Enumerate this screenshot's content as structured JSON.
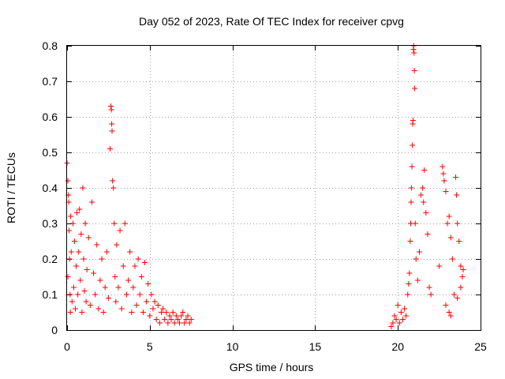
{
  "chart_data": {
    "type": "scatter",
    "title": "Day 052 of 2023, Rate Of TEC Index for receiver cpvg",
    "xlabel": "GPS time / hours",
    "ylabel": "ROTI / TECUs",
    "xlim": [
      0,
      25
    ],
    "ylim": [
      0,
      0.8
    ],
    "x_ticks": [
      0,
      5,
      10,
      15,
      20,
      25
    ],
    "x_tick_labels": [
      "0",
      "5",
      "10",
      "15",
      "20",
      "25"
    ],
    "y_ticks": [
      0,
      0.1,
      0.2,
      0.3,
      0.4,
      0.5,
      0.6,
      0.7,
      0.8
    ],
    "y_tick_labels": [
      "0",
      "0.1",
      "0.2",
      "0.3",
      "0.4",
      "0.5",
      "0.6",
      "0.7",
      "0.8"
    ],
    "grid": true,
    "marker": "plus",
    "color": "#ff0000",
    "series": [
      {
        "name": "ROTI",
        "points": [
          [
            0.0,
            0.47
          ],
          [
            0.05,
            0.42
          ],
          [
            0.05,
            0.15
          ],
          [
            0.08,
            0.38
          ],
          [
            0.1,
            0.36
          ],
          [
            0.12,
            0.28
          ],
          [
            0.15,
            0.2
          ],
          [
            0.18,
            0.1
          ],
          [
            0.2,
            0.05
          ],
          [
            0.22,
            0.32
          ],
          [
            0.25,
            0.22
          ],
          [
            0.3,
            0.08
          ],
          [
            0.35,
            0.3
          ],
          [
            0.4,
            0.12
          ],
          [
            0.45,
            0.25
          ],
          [
            0.5,
            0.06
          ],
          [
            0.55,
            0.18
          ],
          [
            0.6,
            0.33
          ],
          [
            0.65,
            0.1
          ],
          [
            0.7,
            0.22
          ],
          [
            0.75,
            0.34
          ],
          [
            0.8,
            0.14
          ],
          [
            0.85,
            0.27
          ],
          [
            0.9,
            0.05
          ],
          [
            0.95,
            0.4
          ],
          [
            1.0,
            0.2
          ],
          [
            1.05,
            0.11
          ],
          [
            1.1,
            0.3
          ],
          [
            1.15,
            0.08
          ],
          [
            1.2,
            0.17
          ],
          [
            1.3,
            0.26
          ],
          [
            1.4,
            0.07
          ],
          [
            1.5,
            0.36
          ],
          [
            1.6,
            0.16
          ],
          [
            1.7,
            0.1
          ],
          [
            1.8,
            0.24
          ],
          [
            1.9,
            0.06
          ],
          [
            2.0,
            0.14
          ],
          [
            2.1,
            0.2
          ],
          [
            2.2,
            0.05
          ],
          [
            2.3,
            0.12
          ],
          [
            2.4,
            0.22
          ],
          [
            2.5,
            0.09
          ],
          [
            2.6,
            0.51
          ],
          [
            2.65,
            0.63
          ],
          [
            2.68,
            0.62
          ],
          [
            2.7,
            0.58
          ],
          [
            2.72,
            0.56
          ],
          [
            2.75,
            0.42
          ],
          [
            2.8,
            0.4
          ],
          [
            2.85,
            0.3
          ],
          [
            2.9,
            0.15
          ],
          [
            2.95,
            0.08
          ],
          [
            3.0,
            0.24
          ],
          [
            3.1,
            0.12
          ],
          [
            3.2,
            0.28
          ],
          [
            3.3,
            0.06
          ],
          [
            3.4,
            0.18
          ],
          [
            3.5,
            0.3
          ],
          [
            3.6,
            0.1
          ],
          [
            3.7,
            0.14
          ],
          [
            3.8,
            0.22
          ],
          [
            3.9,
            0.05
          ],
          [
            4.0,
            0.12
          ],
          [
            4.1,
            0.18
          ],
          [
            4.2,
            0.07
          ],
          [
            4.3,
            0.2
          ],
          [
            4.4,
            0.1
          ],
          [
            4.5,
            0.15
          ],
          [
            4.6,
            0.05
          ],
          [
            4.7,
            0.19
          ],
          [
            4.8,
            0.08
          ],
          [
            4.9,
            0.13
          ],
          [
            5.0,
            0.04
          ],
          [
            5.1,
            0.1
          ],
          [
            5.2,
            0.06
          ],
          [
            5.3,
            0.08
          ],
          [
            5.4,
            0.03
          ],
          [
            5.5,
            0.07
          ],
          [
            5.6,
            0.02
          ],
          [
            5.7,
            0.05
          ],
          [
            5.8,
            0.06
          ],
          [
            5.9,
            0.03
          ],
          [
            6.0,
            0.05
          ],
          [
            6.1,
            0.02
          ],
          [
            6.2,
            0.04
          ],
          [
            6.3,
            0.03
          ],
          [
            6.4,
            0.05
          ],
          [
            6.5,
            0.02
          ],
          [
            6.6,
            0.04
          ],
          [
            6.7,
            0.03
          ],
          [
            6.8,
            0.02
          ],
          [
            6.9,
            0.04
          ],
          [
            7.0,
            0.05
          ],
          [
            7.1,
            0.02
          ],
          [
            7.2,
            0.03
          ],
          [
            7.3,
            0.04
          ],
          [
            7.4,
            0.02
          ],
          [
            7.5,
            0.03
          ],
          [
            19.6,
            0.01
          ],
          [
            19.7,
            0.02
          ],
          [
            19.8,
            0.04
          ],
          [
            19.9,
            0.03
          ],
          [
            20.0,
            0.07
          ],
          [
            20.1,
            0.02
          ],
          [
            20.2,
            0.05
          ],
          [
            20.3,
            0.03
          ],
          [
            20.4,
            0.06
          ],
          [
            20.5,
            0.04
          ],
          [
            20.6,
            0.1
          ],
          [
            20.65,
            0.13
          ],
          [
            20.7,
            0.16
          ],
          [
            20.75,
            0.25
          ],
          [
            20.78,
            0.3
          ],
          [
            20.8,
            0.36
          ],
          [
            20.82,
            0.4
          ],
          [
            20.85,
            0.46
          ],
          [
            20.88,
            0.52
          ],
          [
            20.9,
            0.58
          ],
          [
            20.92,
            0.59
          ],
          [
            20.94,
            0.79
          ],
          [
            20.96,
            0.8
          ],
          [
            20.98,
            0.78
          ],
          [
            21.0,
            0.73
          ],
          [
            21.02,
            0.68
          ],
          [
            21.05,
            0.3
          ],
          [
            21.1,
            0.2
          ],
          [
            21.2,
            0.14
          ],
          [
            21.3,
            0.22
          ],
          [
            21.4,
            0.38
          ],
          [
            21.5,
            0.4
          ],
          [
            21.55,
            0.36
          ],
          [
            21.6,
            0.45
          ],
          [
            21.7,
            0.33
          ],
          [
            21.8,
            0.27
          ],
          [
            21.9,
            0.12
          ],
          [
            22.0,
            0.1
          ],
          [
            22.5,
            0.18
          ],
          [
            22.7,
            0.46
          ],
          [
            22.75,
            0.44
          ],
          [
            22.8,
            0.42
          ],
          [
            22.9,
            0.39
          ],
          [
            23.0,
            0.3
          ],
          [
            23.1,
            0.32
          ],
          [
            23.2,
            0.26
          ],
          [
            23.3,
            0.2
          ],
          [
            23.4,
            0.1
          ],
          [
            23.5,
            0.43
          ],
          [
            23.55,
            0.38
          ],
          [
            23.6,
            0.3
          ],
          [
            23.7,
            0.25
          ],
          [
            23.8,
            0.18
          ],
          [
            23.9,
            0.15
          ],
          [
            23.2,
            0.04
          ],
          [
            23.1,
            0.05
          ],
          [
            22.9,
            0.07
          ],
          [
            23.6,
            0.09
          ],
          [
            23.8,
            0.12
          ],
          [
            23.95,
            0.17
          ]
        ]
      }
    ]
  }
}
